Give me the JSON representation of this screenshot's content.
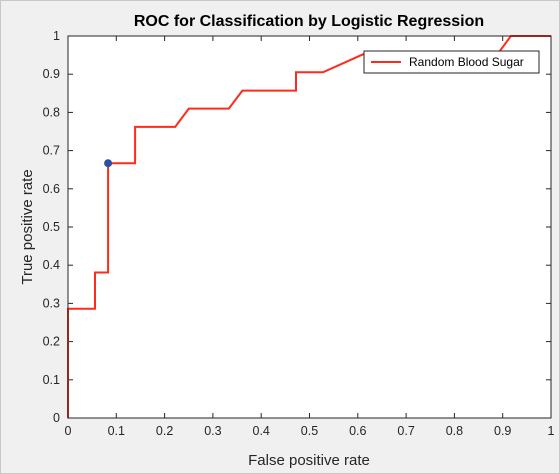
{
  "chart_data": {
    "type": "line",
    "title": "ROC for Classification by Logistic Regression",
    "xlabel": "False positive rate",
    "ylabel": "True positive rate",
    "xlim": [
      0,
      1
    ],
    "ylim": [
      0,
      1
    ],
    "xticks": [
      "0",
      "0.1",
      "0.2",
      "0.3",
      "0.4",
      "0.5",
      "0.6",
      "0.7",
      "0.8",
      "0.9",
      "1"
    ],
    "yticks": [
      "0",
      "0.1",
      "0.2",
      "0.3",
      "0.4",
      "0.5",
      "0.6",
      "0.7",
      "0.8",
      "0.9",
      "1"
    ],
    "grid": false,
    "legend_position": "top-right",
    "series": [
      {
        "name": "Random Blood Sugar",
        "color": "#ff2a1a",
        "x": [
          0,
          0,
          0.056,
          0.056,
          0.083,
          0.083,
          0.139,
          0.139,
          0.222,
          0.25,
          0.333,
          0.361,
          0.472,
          0.472,
          0.528,
          0.611,
          0.694,
          0.75,
          0.806,
          0.889,
          0.917,
          1.0
        ],
        "y": [
          0,
          0.286,
          0.286,
          0.381,
          0.381,
          0.667,
          0.667,
          0.762,
          0.762,
          0.81,
          0.81,
          0.857,
          0.857,
          0.905,
          0.905,
          0.952,
          0.952,
          0.952,
          0.952,
          0.952,
          1.0,
          1.0
        ]
      }
    ],
    "markers": [
      {
        "x": 0.083,
        "y": 0.667,
        "color": "#2e4fa6"
      }
    ]
  }
}
